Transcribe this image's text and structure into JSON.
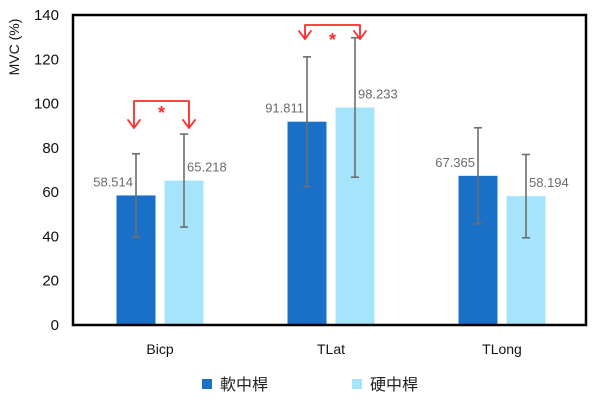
{
  "chart_data": {
    "type": "bar",
    "title": "",
    "xlabel": "",
    "ylabel": "MVC (%)",
    "ylim": [
      0,
      140
    ],
    "yticks": [
      0,
      20,
      40,
      60,
      80,
      100,
      120,
      140
    ],
    "grid": false,
    "legend_position": "bottom",
    "categories": [
      "Bicp",
      "TLat",
      "TLong"
    ],
    "series": [
      {
        "name": "軟中桿",
        "color": "#1a70c6",
        "values": [
          58.514,
          91.811,
          67.365
        ],
        "value_labels": [
          "58.514",
          "91.811",
          "67.365"
        ],
        "error": [
          18.8,
          29.3,
          21.7
        ]
      },
      {
        "name": "硬中桿",
        "color": "#a6e4fc",
        "values": [
          65.218,
          98.233,
          58.194
        ],
        "value_labels": [
          "65.218",
          "98.233",
          "58.194"
        ],
        "error": [
          21.0,
          31.5,
          18.8
        ]
      }
    ],
    "annotations": [
      {
        "type": "significance-bracket",
        "category": "Bicp",
        "label": "*",
        "color": "#ff2a2a"
      },
      {
        "type": "significance-bracket",
        "category": "TLat",
        "label": "*",
        "color": "#ff2a2a"
      }
    ]
  }
}
